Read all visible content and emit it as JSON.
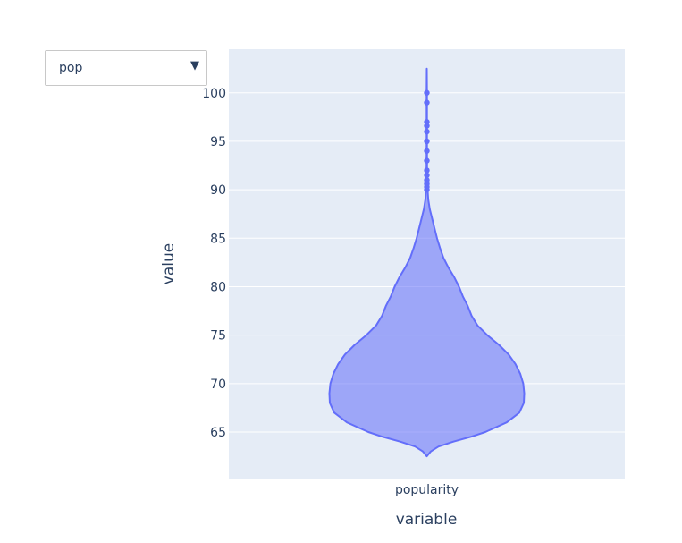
{
  "dropdown": {
    "selected": "pop",
    "arrow_icon": "triangle-down-icon"
  },
  "chart_data": {
    "type": "violin",
    "title": "",
    "xlabel": "variable",
    "ylabel": "value",
    "categories": [
      "popularity"
    ],
    "ylim": [
      60.2,
      104.5
    ],
    "yticks": [
      65,
      70,
      75,
      80,
      85,
      90,
      95,
      100
    ],
    "grid": true,
    "colors": {
      "fill": "#636efa",
      "plot_bg": "#e5ecf6",
      "grid": "#ffffff",
      "text": "#2a3f5f"
    },
    "series": [
      {
        "category": "popularity",
        "min": 62.5,
        "max": 102.5,
        "density_profile": [
          [
            62.5,
            0.0
          ],
          [
            63.0,
            0.04
          ],
          [
            63.5,
            0.12
          ],
          [
            64.0,
            0.27
          ],
          [
            64.5,
            0.45
          ],
          [
            65.0,
            0.6
          ],
          [
            65.5,
            0.71
          ],
          [
            66.0,
            0.82
          ],
          [
            67.0,
            0.95
          ],
          [
            68.0,
            0.995
          ],
          [
            69.0,
            1.0
          ],
          [
            70.0,
            0.99
          ],
          [
            71.0,
            0.96
          ],
          [
            72.0,
            0.91
          ],
          [
            73.0,
            0.84
          ],
          [
            74.0,
            0.74
          ],
          [
            75.0,
            0.62
          ],
          [
            76.0,
            0.52
          ],
          [
            77.0,
            0.46
          ],
          [
            78.0,
            0.42
          ],
          [
            79.0,
            0.37
          ],
          [
            80.0,
            0.33
          ],
          [
            81.0,
            0.28
          ],
          [
            82.0,
            0.22
          ],
          [
            83.0,
            0.17
          ],
          [
            84.0,
            0.135
          ],
          [
            85.0,
            0.105
          ],
          [
            86.0,
            0.08
          ],
          [
            87.0,
            0.055
          ],
          [
            88.0,
            0.03
          ],
          [
            89.0,
            0.015
          ],
          [
            90.0,
            0.008
          ],
          [
            91.0,
            0.004
          ],
          [
            92.0,
            0.0025
          ],
          [
            95.0,
            0.002
          ],
          [
            100.0,
            0.002
          ],
          [
            102.5,
            0.0
          ]
        ],
        "outliers": [
          90,
          90.3,
          90.6,
          91,
          91.5,
          92,
          93,
          94,
          95,
          96,
          96.6,
          97,
          99,
          100
        ]
      }
    ]
  }
}
